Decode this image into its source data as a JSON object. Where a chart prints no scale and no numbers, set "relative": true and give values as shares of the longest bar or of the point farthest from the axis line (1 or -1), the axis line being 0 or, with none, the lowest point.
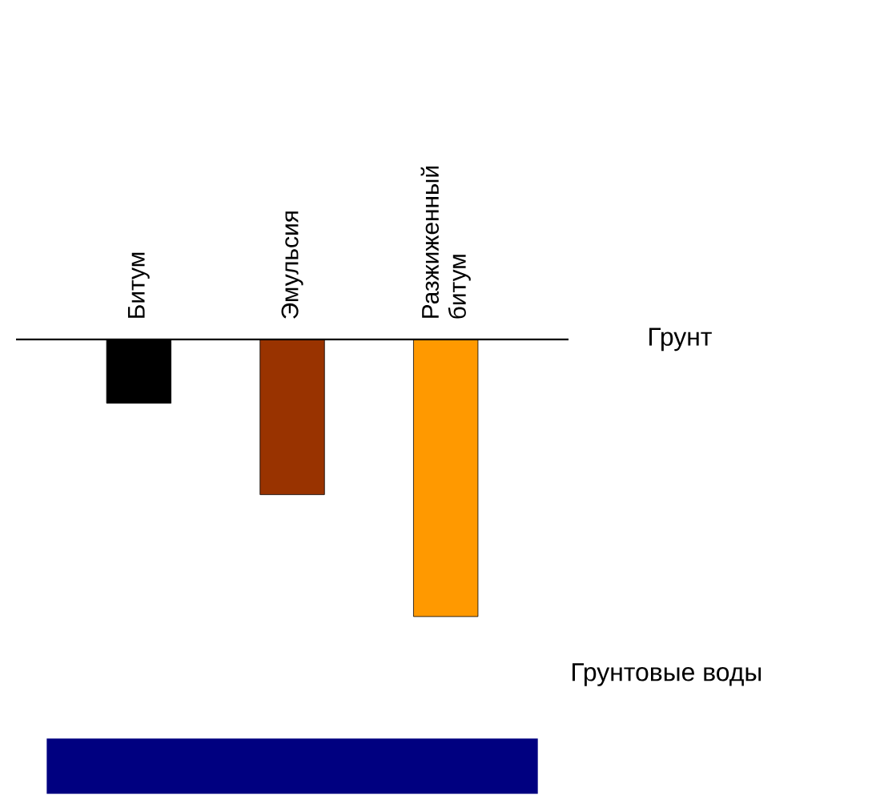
{
  "chart_data": {
    "type": "bar",
    "relative": true,
    "categories": [
      "Битум",
      "Эмульсия",
      "Разжиженный битум"
    ],
    "values": [
      -0.23,
      -0.56,
      -1
    ],
    "colors": [
      "#000000",
      "#993300",
      "#ff9900"
    ],
    "annotations": [
      "Грунт"
    ],
    "bands": [
      {
        "axis": "y",
        "from": -1.44,
        "to": -1.64,
        "label": "Грунтовые воды",
        "color": "#000080"
      }
    ]
  }
}
